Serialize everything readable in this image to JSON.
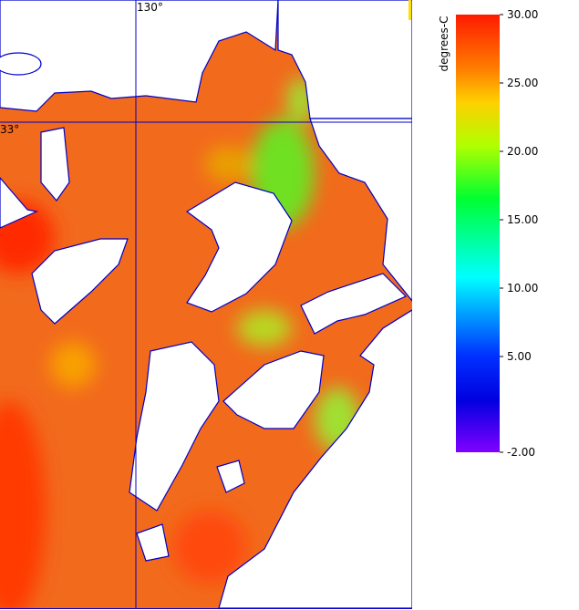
{
  "map": {
    "lon_label": "130°",
    "lat_label": "33°"
  },
  "colorbar": {
    "label": "degrees-C",
    "range": [
      -2,
      30
    ],
    "ticks": [
      {
        "value": 30,
        "label": "30.00"
      },
      {
        "value": 25,
        "label": "25.00"
      },
      {
        "value": 20,
        "label": "20.00"
      },
      {
        "value": 15,
        "label": "15.00"
      },
      {
        "value": 10,
        "label": "10.00"
      },
      {
        "value": 5,
        "label": "5.00"
      },
      {
        "value": -2,
        "label": "-2.00"
      }
    ]
  }
}
